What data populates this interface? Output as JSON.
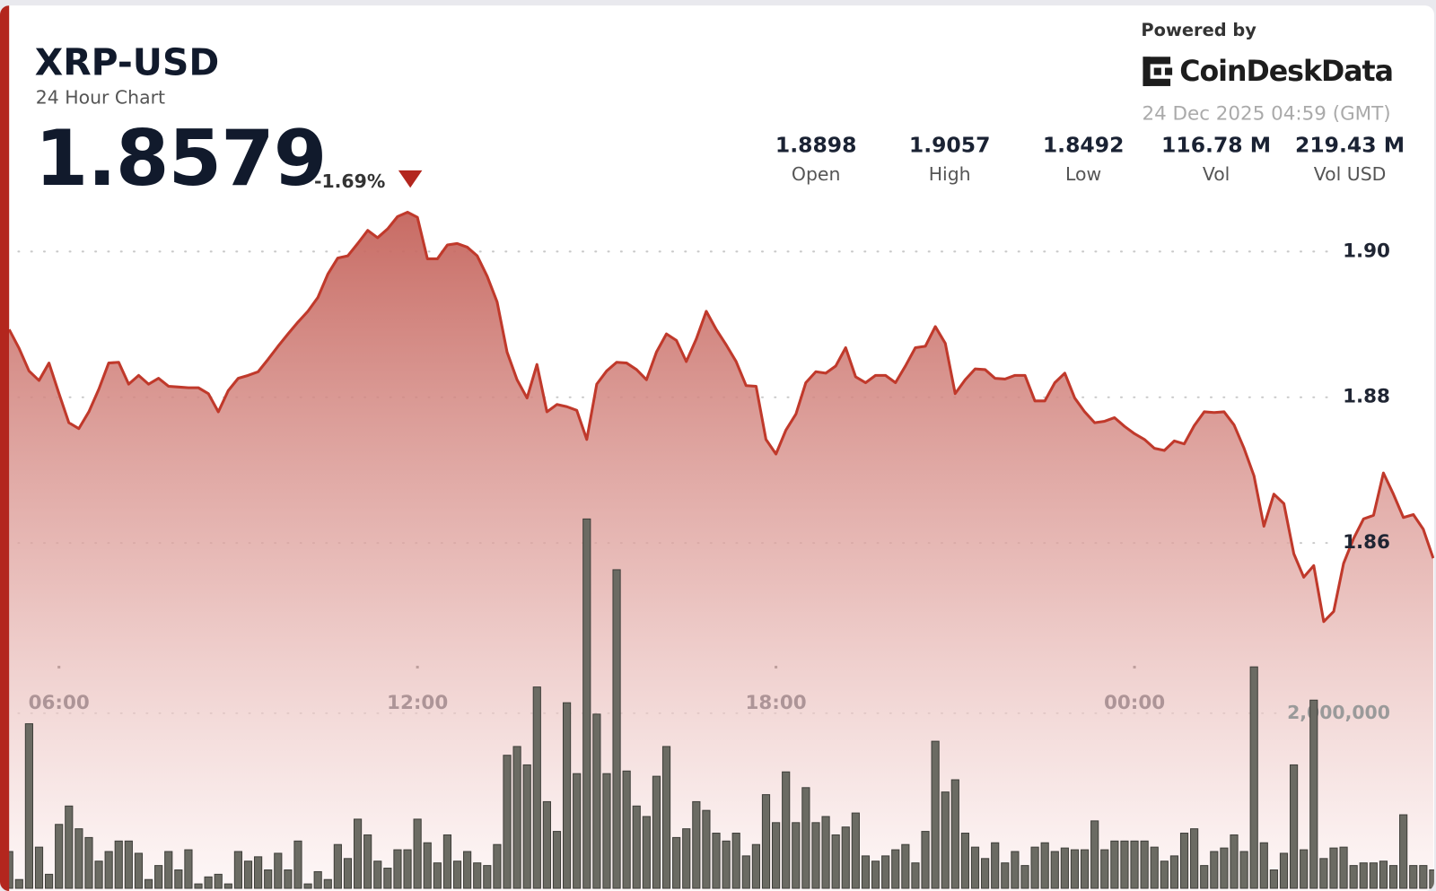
{
  "chart_data": {
    "type": "line",
    "title": "XRP-USD",
    "subtitle": "24 Hour Chart",
    "price": 1.8579,
    "change": {
      "value": -1.69,
      "label": "-1.69%"
    },
    "powered_by": "Powered by",
    "brand": "CoinDeskData",
    "timestamp": "24 Dec 2025 04:59 (GMT)",
    "stats": [
      {
        "name": "Open",
        "value": 1.8898
      },
      {
        "name": "High",
        "value": 1.9057
      },
      {
        "name": "Low",
        "value": 1.8492
      },
      {
        "name": "Vol",
        "value": 116.78,
        "value_label": "116.78 M"
      },
      {
        "name": "Vol USD",
        "value": 219.43,
        "value_label": "219.43 M"
      }
    ],
    "categories": [
      null,
      null,
      null,
      null,
      null,
      "06:00",
      null,
      null,
      null,
      null,
      null,
      null,
      null,
      null,
      null,
      null,
      null,
      null,
      null,
      null,
      null,
      null,
      null,
      null,
      null,
      null,
      null,
      null,
      null,
      null,
      null,
      null,
      null,
      null,
      null,
      null,
      null,
      null,
      null,
      null,
      null,
      "12:00",
      null,
      null,
      null,
      null,
      null,
      null,
      null,
      null,
      null,
      null,
      null,
      null,
      null,
      null,
      null,
      null,
      null,
      null,
      null,
      null,
      null,
      null,
      null,
      null,
      null,
      null,
      null,
      null,
      null,
      null,
      null,
      null,
      null,
      null,
      null,
      "18:00",
      null,
      null,
      null,
      null,
      null,
      null,
      null,
      null,
      null,
      null,
      null,
      null,
      null,
      null,
      null,
      null,
      null,
      null,
      null,
      null,
      null,
      null,
      null,
      null,
      null,
      null,
      null,
      null,
      null,
      null,
      null,
      null,
      null,
      null,
      null,
      "00:00",
      null,
      null,
      null,
      null,
      null,
      null,
      null,
      null,
      null,
      null,
      null,
      null,
      null,
      null,
      null,
      null,
      null,
      null,
      null,
      null,
      null,
      null,
      null,
      null,
      null,
      null,
      null,
      null,
      null,
      null
    ],
    "series": [
      {
        "color": "#c0392b",
        "values": [
          1.8893,
          1.8867,
          1.8836,
          1.8823,
          1.8847,
          1.8805,
          1.8765,
          1.8757,
          1.878,
          1.8811,
          1.8847,
          1.8848,
          1.8818,
          1.883,
          1.8818,
          1.8826,
          1.8815,
          1.8814,
          1.8813,
          1.8813,
          1.8805,
          1.878,
          1.8809,
          1.8826,
          1.883,
          1.8835,
          1.8852,
          1.887,
          1.8887,
          1.8903,
          1.8918,
          1.8937,
          1.8969,
          1.8991,
          1.8994,
          1.9011,
          1.9029,
          1.9019,
          1.9031,
          1.9048,
          1.9054,
          1.9047,
          1.899,
          1.899,
          1.9009,
          1.9011,
          1.9006,
          1.8994,
          1.8966,
          1.8931,
          1.8862,
          1.8824,
          1.8799,
          1.8845,
          1.878,
          1.879,
          1.8787,
          1.8782,
          1.8742,
          1.8818,
          1.8836,
          1.8848,
          1.8847,
          1.8838,
          1.8824,
          1.8862,
          1.8887,
          1.8878,
          1.8849,
          1.888,
          1.8918,
          1.8893,
          1.8872,
          1.8849,
          1.8816,
          1.8815,
          1.8742,
          1.8722,
          1.8755,
          1.8777,
          1.882,
          1.8835,
          1.8833,
          1.8843,
          1.8868,
          1.8828,
          1.882,
          1.883,
          1.883,
          1.882,
          1.8843,
          1.8868,
          1.887,
          1.8897,
          1.8874,
          1.8805,
          1.8824,
          1.8839,
          1.8838,
          1.8826,
          1.8825,
          1.883,
          1.883,
          1.8795,
          1.8795,
          1.882,
          1.8833,
          1.8799,
          1.878,
          1.8765,
          1.8767,
          1.8772,
          1.876,
          1.875,
          1.8742,
          1.873,
          1.8727,
          1.874,
          1.8736,
          1.8761,
          1.878,
          1.8779,
          1.878,
          1.8762,
          1.873,
          1.8692,
          1.8623,
          1.8667,
          1.8654,
          1.8585,
          1.8553,
          1.8569,
          1.8492,
          1.8506,
          1.8572,
          1.8606,
          1.8633,
          1.8638,
          1.8696,
          1.8667,
          1.8635,
          1.8639,
          1.8619,
          1.8579
        ]
      },
      {
        "type": "bar",
        "axis": "y2",
        "color": "#6b6b63",
        "values": [
          420000,
          100000,
          1880000,
          470000,
          160000,
          730000,
          940000,
          680000,
          580000,
          310000,
          420000,
          540000,
          540000,
          400000,
          100000,
          260000,
          420000,
          210000,
          440000,
          50000,
          130000,
          160000,
          50000,
          420000,
          310000,
          360000,
          210000,
          400000,
          210000,
          540000,
          50000,
          190000,
          100000,
          500000,
          340000,
          790000,
          610000,
          310000,
          230000,
          440000,
          440000,
          790000,
          520000,
          290000,
          610000,
          310000,
          420000,
          290000,
          260000,
          500000,
          1520000,
          1620000,
          1410000,
          2300000,
          990000,
          650000,
          2120000,
          1310000,
          4220000,
          1990000,
          1310000,
          3640000,
          1340000,
          940000,
          820000,
          1280000,
          1620000,
          580000,
          680000,
          990000,
          890000,
          630000,
          540000,
          630000,
          370000,
          500000,
          1070000,
          750000,
          1330000,
          750000,
          1150000,
          750000,
          820000,
          610000,
          700000,
          860000,
          370000,
          310000,
          370000,
          440000,
          500000,
          290000,
          650000,
          1680000,
          1100000,
          1240000,
          630000,
          470000,
          340000,
          520000,
          290000,
          420000,
          260000,
          470000,
          520000,
          420000,
          460000,
          440000,
          440000,
          770000,
          440000,
          540000,
          540000,
          540000,
          540000,
          470000,
          310000,
          370000,
          630000,
          680000,
          260000,
          420000,
          460000,
          610000,
          420000,
          2530000,
          520000,
          210000,
          400000,
          1410000,
          440000,
          2150000,
          340000,
          460000,
          470000,
          260000,
          290000,
          290000,
          310000,
          260000,
          840000,
          260000,
          260000,
          210000
        ]
      }
    ],
    "ylim": [
      1.8126,
      1.9075
    ],
    "yticks": [
      {
        "value": 1.9,
        "label": "1.90"
      },
      1.88,
      1.86
    ],
    "y2lim": [
      0,
      7900000
    ],
    "y2ticks": [
      {
        "value": 2000000,
        "label": "2,000,000"
      }
    ],
    "grid": true
  }
}
